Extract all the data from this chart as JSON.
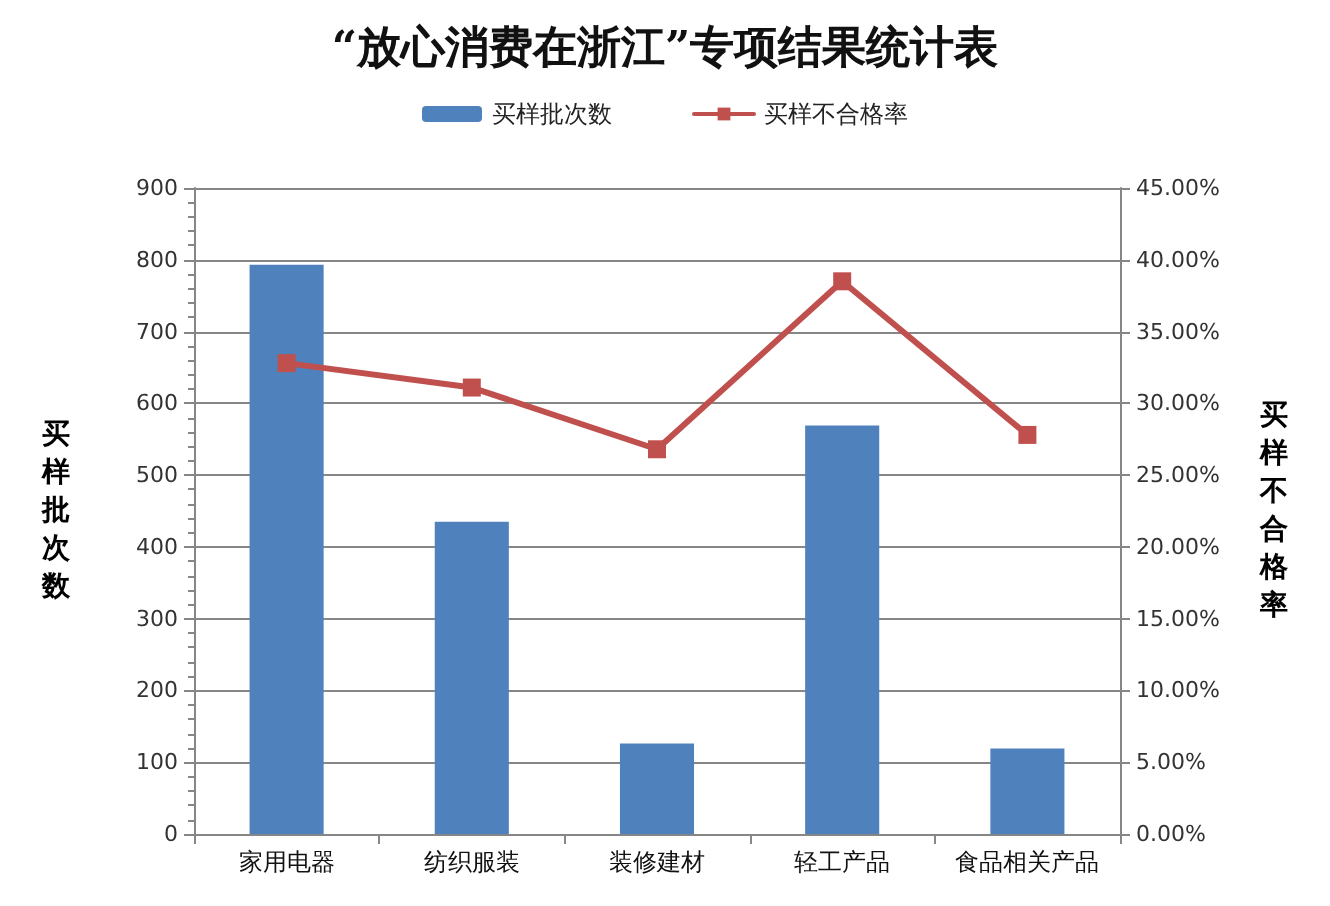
{
  "chart_data": {
    "type": "bar",
    "title": "“放心消费在浙江”专项结果统计表",
    "ylabel": "买样批次数",
    "y2label": "买样不合格率",
    "categories": [
      "家用电器",
      "纺织服装",
      "装修建材",
      "轻工产品",
      "食品相关产品"
    ],
    "series": [
      {
        "name": "买样批次数",
        "color": "#4f81bd",
        "values": [
          793,
          435,
          126,
          569,
          119
        ]
      },
      {
        "name": "买样不合格率",
        "type": "line",
        "axis": "y2",
        "color": "#c0504d",
        "values": [
          32.8,
          31.1,
          26.8,
          38.5,
          27.8
        ]
      }
    ],
    "marker": "square",
    "line_style": "solid",
    "grid": "y",
    "legend": "top",
    "ylim": [
      0,
      900
    ],
    "yticks": [
      0,
      {
        "value": 20,
        "label": null
      },
      {
        "value": 40,
        "label": null
      },
      {
        "value": 60,
        "label": null
      },
      {
        "value": 80,
        "label": null
      },
      100,
      {
        "value": 120,
        "label": null
      },
      {
        "value": 140,
        "label": null
      },
      {
        "value": 160,
        "label": null
      },
      {
        "value": 180,
        "label": null
      },
      200,
      {
        "value": 220,
        "label": null
      },
      {
        "value": 240,
        "label": null
      },
      {
        "value": 260,
        "label": null
      },
      {
        "value": 280,
        "label": null
      },
      300,
      {
        "value": 320,
        "label": null
      },
      {
        "value": 340,
        "label": null
      },
      {
        "value": 360,
        "label": null
      },
      {
        "value": 380,
        "label": null
      },
      400,
      {
        "value": 420,
        "label": null
      },
      {
        "value": 440,
        "label": null
      },
      {
        "value": 460,
        "label": null
      },
      {
        "value": 480,
        "label": null
      },
      500,
      {
        "value": 520,
        "label": null
      },
      {
        "value": 540,
        "label": null
      },
      {
        "value": 560,
        "label": null
      },
      {
        "value": 580,
        "label": null
      },
      600,
      {
        "value": 620,
        "label": null
      },
      {
        "value": 640,
        "label": null
      },
      {
        "value": 660,
        "label": null
      },
      {
        "value": 680,
        "label": null
      },
      700,
      {
        "value": 720,
        "label": null
      },
      {
        "value": 740,
        "label": null
      },
      {
        "value": 760,
        "label": null
      },
      {
        "value": 780,
        "label": null
      },
      800,
      {
        "value": 820,
        "label": null
      },
      {
        "value": 840,
        "label": null
      },
      {
        "value": 860,
        "label": null
      },
      {
        "value": 880,
        "label": null
      },
      900
    ],
    "y2lim": [
      0,
      45
    ],
    "y2ticks": [
      {
        "value": 0,
        "label": "0.00%"
      },
      {
        "value": 5,
        "label": "5.00%"
      },
      {
        "value": 10,
        "label": "10.00%"
      },
      {
        "value": 15,
        "label": "15.00%"
      },
      {
        "value": 20,
        "label": "20.00%"
      },
      {
        "value": 25,
        "label": "25.00%"
      },
      {
        "value": 30,
        "label": "30.00%"
      },
      {
        "value": 35,
        "label": "35.00%"
      },
      {
        "value": 40,
        "label": "40.00%"
      },
      {
        "value": 45,
        "label": "45.00%"
      }
    ]
  }
}
